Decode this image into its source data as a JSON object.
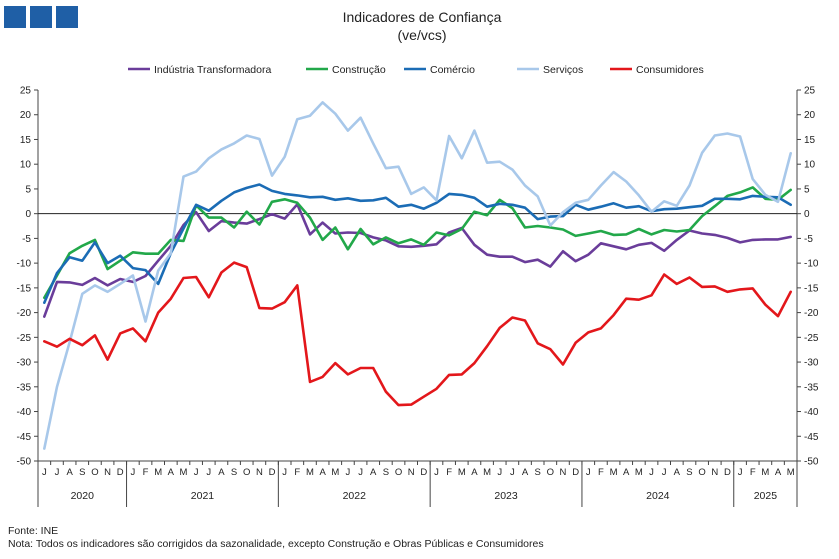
{
  "colors": {
    "logo": "#1f5fa6",
    "industria": "#6a3d9a",
    "construcao": "#22a84a",
    "comercio": "#1b6cb5",
    "servicos": "#a8c8ea",
    "consumidores": "#e3171b"
  },
  "footer": {
    "source": "Fonte: INE",
    "note": "Nota: Todos os indicadores são corrigidos da sazonalidade, excepto Construção e Obras Públicas e Consumidores"
  },
  "chart_data": {
    "type": "line",
    "title": "Indicadores de Confiança",
    "subtitle": "(ve/vcs)",
    "ylim": [
      -50,
      25
    ],
    "yticks": [
      25,
      20,
      15,
      10,
      5,
      0,
      -5,
      -10,
      -15,
      -20,
      -25,
      -30,
      -35,
      -40,
      -45,
      -50
    ],
    "secondary_yaxis": true,
    "legend_position": "top",
    "x": [
      "2020-06",
      "2020-07",
      "2020-08",
      "2020-09",
      "2020-10",
      "2020-11",
      "2020-12",
      "2021-01",
      "2021-02",
      "2021-03",
      "2021-04",
      "2021-05",
      "2021-06",
      "2021-07",
      "2021-08",
      "2021-09",
      "2021-10",
      "2021-11",
      "2021-12",
      "2022-01",
      "2022-02",
      "2022-03",
      "2022-04",
      "2022-05",
      "2022-06",
      "2022-07",
      "2022-08",
      "2022-09",
      "2022-10",
      "2022-11",
      "2022-12",
      "2023-01",
      "2023-02",
      "2023-03",
      "2023-04",
      "2023-05",
      "2023-06",
      "2023-07",
      "2023-08",
      "2023-09",
      "2023-10",
      "2023-11",
      "2023-12",
      "2024-01",
      "2024-02",
      "2024-03",
      "2024-04",
      "2024-05",
      "2024-06",
      "2024-07",
      "2024-08",
      "2024-09",
      "2024-10",
      "2024-11",
      "2024-12",
      "2025-01",
      "2025-02",
      "2025-03",
      "2025-04",
      "2025-05"
    ],
    "month_labels": [
      "J",
      "J",
      "A",
      "S",
      "O",
      "N",
      "D",
      "J",
      "F",
      "M",
      "A",
      "M",
      "J",
      "J",
      "A",
      "S",
      "O",
      "N",
      "D",
      "J",
      "F",
      "M",
      "A",
      "M",
      "J",
      "J",
      "A",
      "S",
      "O",
      "N",
      "D",
      "J",
      "F",
      "M",
      "A",
      "M",
      "J",
      "J",
      "A",
      "S",
      "O",
      "N",
      "D",
      "J",
      "F",
      "M",
      "A",
      "M",
      "J",
      "J",
      "A",
      "S",
      "O",
      "N",
      "D",
      "J",
      "F",
      "M",
      "A",
      "M"
    ],
    "years": [
      {
        "label": "2020",
        "start": 0,
        "end": 6
      },
      {
        "label": "2021",
        "start": 7,
        "end": 18
      },
      {
        "label": "2022",
        "start": 19,
        "end": 30
      },
      {
        "label": "2023",
        "start": 31,
        "end": 42
      },
      {
        "label": "2024",
        "start": 43,
        "end": 54
      },
      {
        "label": "2025",
        "start": 55,
        "end": 59
      }
    ],
    "series": [
      {
        "name": "Indústria Transformadora",
        "color_key": "industria",
        "values": [
          -20.8,
          -13.8,
          -13.9,
          -14.4,
          -13.0,
          -14.5,
          -13.2,
          -13.8,
          -12.6,
          -9.5,
          -6.5,
          -2.3,
          0.3,
          -3.5,
          -1.5,
          -1.8,
          -2.0,
          -1.1,
          -0.1,
          -1.0,
          1.9,
          -4.2,
          -1.8,
          -4.0,
          -3.8,
          -3.9,
          -4.8,
          -5.4,
          -6.6,
          -6.7,
          -6.5,
          -6.2,
          -3.8,
          -2.9,
          -6.3,
          -8.3,
          -8.7,
          -8.7,
          -9.8,
          -9.3,
          -10.7,
          -7.6,
          -9.6,
          -8.3,
          -6.0,
          -6.6,
          -7.2,
          -6.3,
          -5.9,
          -7.5,
          -5.3,
          -3.4,
          -4.0,
          -4.3,
          -4.9,
          -5.8,
          -5.3,
          -5.2,
          -5.2,
          -4.7
        ]
      },
      {
        "name": "Construção",
        "color_key": "construcao",
        "values": [
          -17.0,
          -12.5,
          -8.0,
          -6.5,
          -5.3,
          -11.2,
          -9.5,
          -7.8,
          -8.1,
          -8.1,
          -5.3,
          -5.5,
          1.7,
          -0.8,
          -0.8,
          -2.8,
          0.4,
          -2.2,
          2.4,
          2.9,
          2.2,
          -0.8,
          -5.3,
          -2.8,
          -7.2,
          -3.1,
          -6.2,
          -4.8,
          -6.0,
          -5.2,
          -6.3,
          -3.8,
          -4.4,
          -3.1,
          0.4,
          -0.3,
          2.8,
          1.1,
          -2.8,
          -2.5,
          -2.8,
          -3.2,
          -4.5,
          -4.0,
          -3.5,
          -4.3,
          -4.2,
          -3.1,
          -4.2,
          -3.3,
          -3.6,
          -3.3,
          -0.5,
          1.5,
          3.6,
          4.3,
          5.3,
          3.0,
          2.8,
          4.8
        ]
      },
      {
        "name": "Comércio",
        "color_key": "comercio",
        "values": [
          -18.0,
          -12.0,
          -8.8,
          -9.5,
          -5.8,
          -10.0,
          -8.5,
          -11.0,
          -11.4,
          -14.2,
          -8.0,
          -3.0,
          1.8,
          0.6,
          2.6,
          4.3,
          5.2,
          5.9,
          4.6,
          4.0,
          3.7,
          3.3,
          3.4,
          2.8,
          3.1,
          2.6,
          2.7,
          3.2,
          1.4,
          1.8,
          1.0,
          2.2,
          4.0,
          3.8,
          3.2,
          1.4,
          2.0,
          1.8,
          1.2,
          -1.1,
          -0.6,
          -0.5,
          1.8,
          0.8,
          1.4,
          2.1,
          1.2,
          1.5,
          0.5,
          0.9,
          1.0,
          1.3,
          1.6,
          3.0,
          3.0,
          2.9,
          3.6,
          3.4,
          3.3,
          1.8
        ]
      },
      {
        "name": "Serviços",
        "color_key": "servicos",
        "values": [
          -47.5,
          -35.0,
          -26.0,
          -16.2,
          -14.5,
          -15.8,
          -14.2,
          -12.5,
          -21.8,
          -11.5,
          -8.0,
          7.5,
          8.5,
          11.2,
          13.0,
          14.2,
          15.8,
          15.1,
          7.7,
          11.5,
          19.1,
          19.8,
          22.5,
          20.2,
          16.8,
          19.4,
          14.2,
          9.2,
          9.5,
          4.0,
          5.3,
          2.7,
          15.7,
          11.2,
          16.8,
          10.3,
          10.5,
          8.9,
          5.7,
          3.5,
          -2.4,
          0.3,
          2.2,
          2.8,
          5.7,
          8.4,
          6.5,
          3.7,
          0.4,
          2.5,
          1.6,
          5.7,
          12.3,
          15.8,
          16.2,
          15.6,
          7.0,
          3.8,
          2.4,
          12.2
        ]
      },
      {
        "name": "Consumidores",
        "color_key": "consumidores",
        "values": [
          -25.8,
          -26.9,
          -25.3,
          -26.6,
          -24.6,
          -29.5,
          -24.2,
          -23.2,
          -25.8,
          -20.0,
          -17.2,
          -13.0,
          -12.8,
          -16.9,
          -11.9,
          -9.9,
          -10.8,
          -19.1,
          -19.2,
          -17.9,
          -14.5,
          -34.0,
          -33.0,
          -30.2,
          -32.5,
          -31.2,
          -31.2,
          -36.0,
          -38.7,
          -38.6,
          -37.0,
          -35.4,
          -32.6,
          -32.5,
          -30.2,
          -26.8,
          -23.1,
          -21.0,
          -21.6,
          -26.2,
          -27.4,
          -30.5,
          -26.1,
          -24.0,
          -23.2,
          -20.5,
          -17.2,
          -17.4,
          -16.5,
          -12.3,
          -14.2,
          -12.9,
          -14.8,
          -14.7,
          -15.8,
          -15.3,
          -15.1,
          -18.4,
          -20.7,
          -15.8
        ]
      }
    ]
  }
}
